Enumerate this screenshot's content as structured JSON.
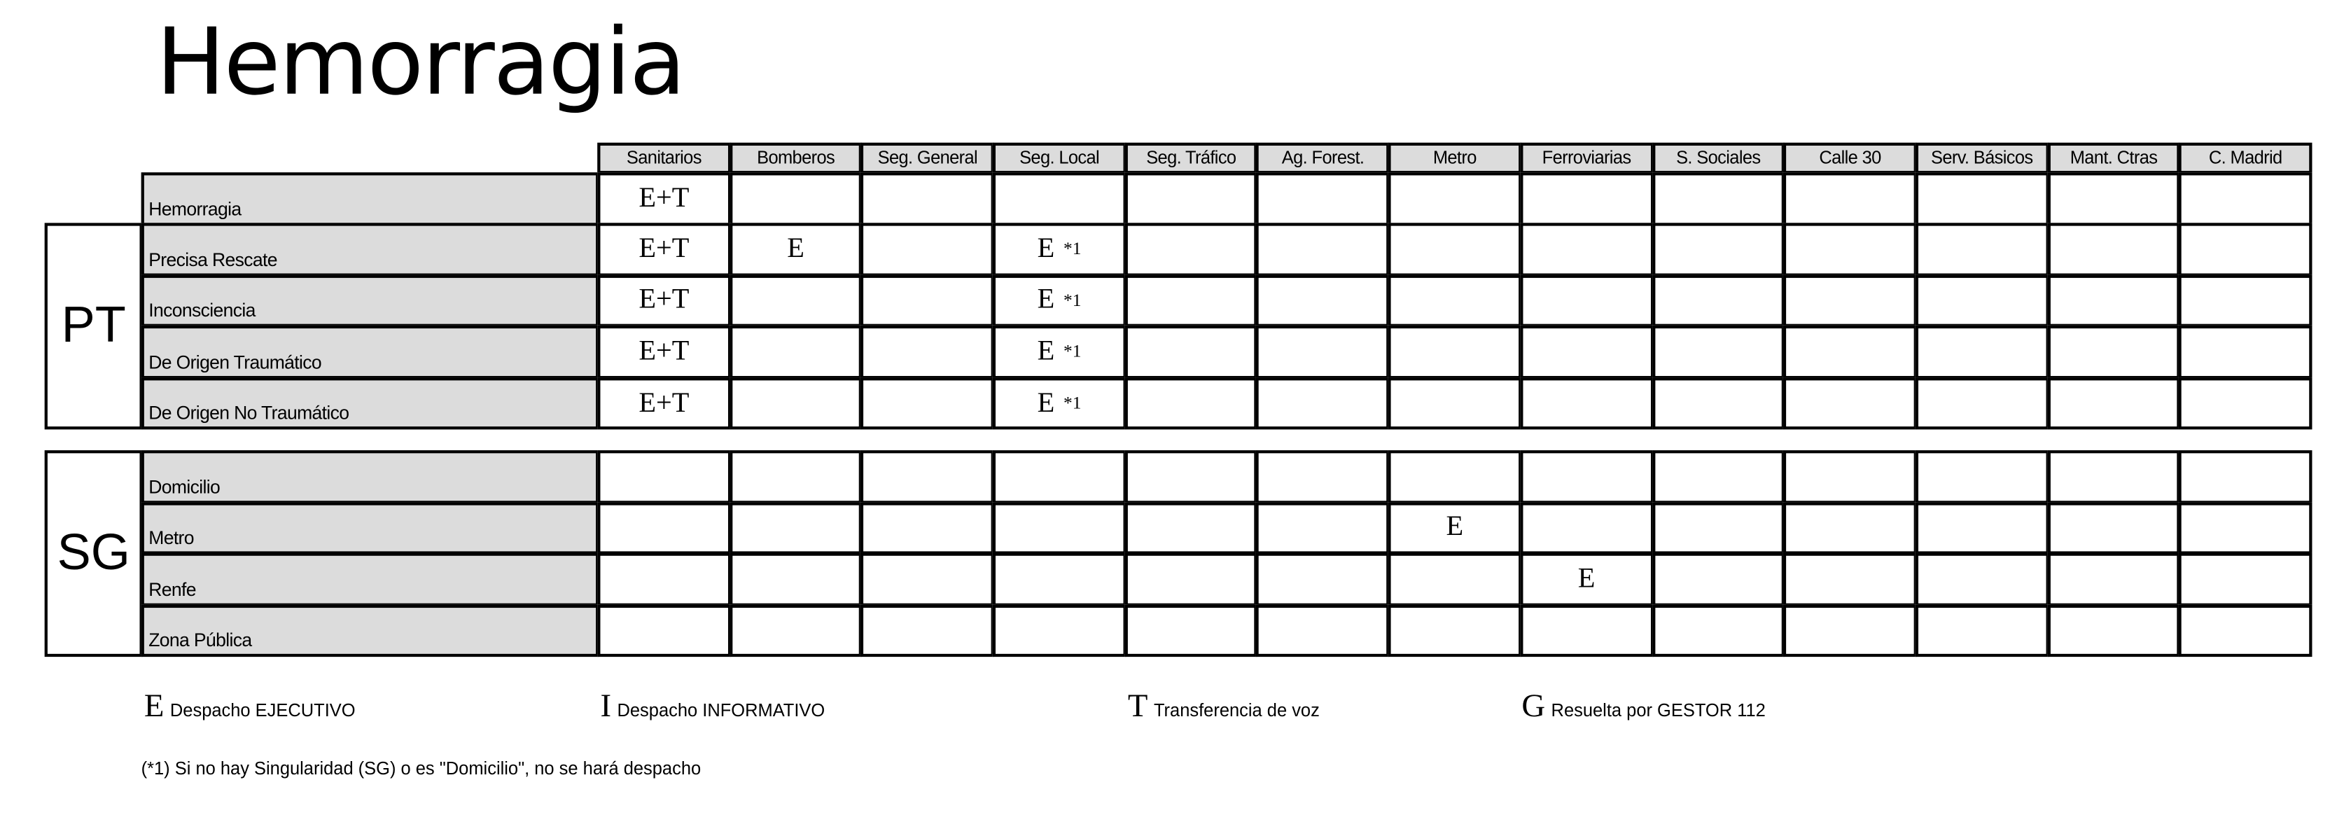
{
  "title": "Hemorragia",
  "columns": [
    "Sanitarios",
    "Bomberos",
    "Seg. General",
    "Seg. Local",
    "Seg. Tráfico",
    "Ag. Forest.",
    "Metro",
    "Ferroviarias",
    "S. Sociales",
    "Calle 30",
    "Serv. Básicos",
    "Mant. Ctras",
    "C. Madrid"
  ],
  "header_row": {
    "label": "Hemorragia",
    "cells": [
      "E+T",
      "",
      "",
      "",
      "",
      "",
      "",
      "",
      "",
      "",
      "",
      "",
      ""
    ]
  },
  "groups": [
    {
      "code": "PT",
      "rows": [
        {
          "label": "Precisa Rescate",
          "cells": [
            "E+T",
            "E",
            "",
            "E|*1",
            "",
            "",
            "",
            "",
            "",
            "",
            "",
            "",
            ""
          ]
        },
        {
          "label": "Inconsciencia",
          "cells": [
            "E+T",
            "",
            "",
            "E|*1",
            "",
            "",
            "",
            "",
            "",
            "",
            "",
            "",
            ""
          ]
        },
        {
          "label": "De Origen Traumático",
          "cells": [
            "E+T",
            "",
            "",
            "E|*1",
            "",
            "",
            "",
            "",
            "",
            "",
            "",
            "",
            ""
          ]
        },
        {
          "label": "De Origen No Traumático",
          "cells": [
            "E+T",
            "",
            "",
            "E|*1",
            "",
            "",
            "",
            "",
            "",
            "",
            "",
            "",
            ""
          ]
        }
      ]
    },
    {
      "code": "SG",
      "rows": [
        {
          "label": "Domicilio",
          "cells": [
            "",
            "",
            "",
            "",
            "",
            "",
            "",
            "",
            "",
            "",
            "",
            "",
            ""
          ]
        },
        {
          "label": "Metro",
          "cells": [
            "",
            "",
            "",
            "",
            "",
            "",
            "E",
            "",
            "",
            "",
            "",
            "",
            ""
          ]
        },
        {
          "label": "Renfe",
          "cells": [
            "",
            "",
            "",
            "",
            "",
            "",
            "",
            "E",
            "",
            "",
            "",
            "",
            ""
          ]
        },
        {
          "label": "Zona Pública",
          "cells": [
            "",
            "",
            "",
            "",
            "",
            "",
            "",
            "",
            "",
            "",
            "",
            "",
            ""
          ]
        }
      ]
    }
  ],
  "legend": [
    {
      "key": "E",
      "text": "Despacho EJECUTIVO"
    },
    {
      "key": "I",
      "text": "Despacho INFORMATIVO"
    },
    {
      "key": "T",
      "text": "Transferencia de voz"
    },
    {
      "key": "G",
      "text": "Resuelta por GESTOR 112"
    }
  ],
  "footnote": "(*1) Si no hay Singularidad (SG) o es \"Domicilio\", no se hará despacho"
}
